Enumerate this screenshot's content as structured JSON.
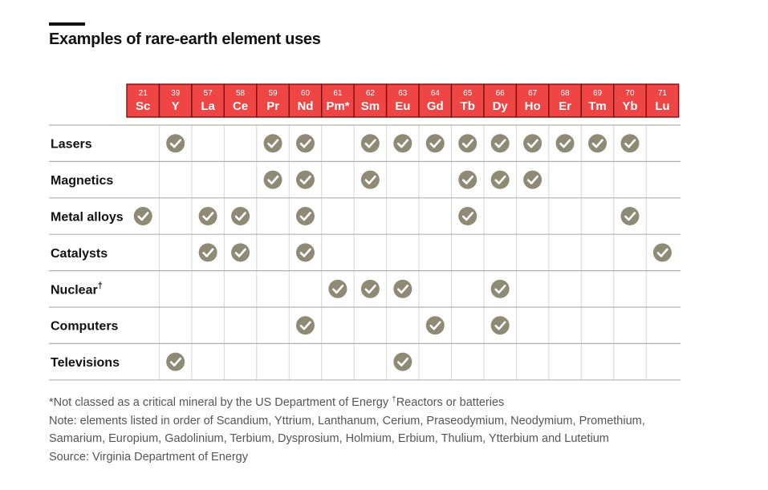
{
  "title": "Examples of rare-earth element uses",
  "colors": {
    "element_fill": "#F04545",
    "element_border": "#7A1010",
    "element_text": "#ffffff",
    "check_fill": "#8E8A75",
    "grid_line": "#d6d6d6",
    "row_rule": "#b0b0b0"
  },
  "chart_data": {
    "type": "table",
    "title": "Examples of rare-earth element uses",
    "columns": [
      {
        "number": "21",
        "symbol": "Sc"
      },
      {
        "number": "39",
        "symbol": "Y"
      },
      {
        "number": "57",
        "symbol": "La"
      },
      {
        "number": "58",
        "symbol": "Ce"
      },
      {
        "number": "59",
        "symbol": "Pr"
      },
      {
        "number": "60",
        "symbol": "Nd"
      },
      {
        "number": "61",
        "symbol": "Pm*"
      },
      {
        "number": "62",
        "symbol": "Sm"
      },
      {
        "number": "63",
        "symbol": "Eu"
      },
      {
        "number": "64",
        "symbol": "Gd"
      },
      {
        "number": "65",
        "symbol": "Tb"
      },
      {
        "number": "66",
        "symbol": "Dy"
      },
      {
        "number": "67",
        "symbol": "Ho"
      },
      {
        "number": "68",
        "symbol": "Er"
      },
      {
        "number": "69",
        "symbol": "Tm"
      },
      {
        "number": "70",
        "symbol": "Yb"
      },
      {
        "number": "71",
        "symbol": "Lu"
      }
    ],
    "rows": [
      {
        "label": "Lasers",
        "sup": "",
        "uses": [
          "Y",
          "Pr",
          "Nd",
          "Sm",
          "Eu",
          "Gd",
          "Tb",
          "Dy",
          "Ho",
          "Er",
          "Tm",
          "Yb"
        ]
      },
      {
        "label": "Magnetics",
        "sup": "",
        "uses": [
          "Pr",
          "Nd",
          "Sm",
          "Tb",
          "Dy",
          "Ho"
        ]
      },
      {
        "label": "Metal alloys",
        "sup": "",
        "uses": [
          "Sc",
          "La",
          "Ce",
          "Nd",
          "Tb",
          "Yb"
        ]
      },
      {
        "label": "Catalysts",
        "sup": "",
        "uses": [
          "La",
          "Ce",
          "Nd",
          "Lu"
        ]
      },
      {
        "label": "Nuclear",
        "sup": "†",
        "uses": [
          "Pm*",
          "Sm",
          "Eu",
          "Dy"
        ]
      },
      {
        "label": "Computers",
        "sup": "",
        "uses": [
          "Nd",
          "Gd",
          "Dy"
        ]
      },
      {
        "label": "Televisions",
        "sup": "",
        "uses": [
          "Y",
          "Eu"
        ]
      }
    ]
  },
  "footnotes": {
    "asterisk": "*Not classed as a critical mineral by the US Department of Energy ",
    "dagger_mark": "†",
    "dagger_text": "Reactors or batteries",
    "note_line1": "Note: elements listed in order of Scandium, Yttrium, Lanthanum, Cerium, Praseodymium, Neodymium, Promethium,",
    "note_line2": "Samarium, Europium, Gadolinium, Terbium, Dysprosium, Holmium, Erbium, Thulium, Ytterbium and Lutetium",
    "source": "Source: Virginia Department of Energy"
  }
}
